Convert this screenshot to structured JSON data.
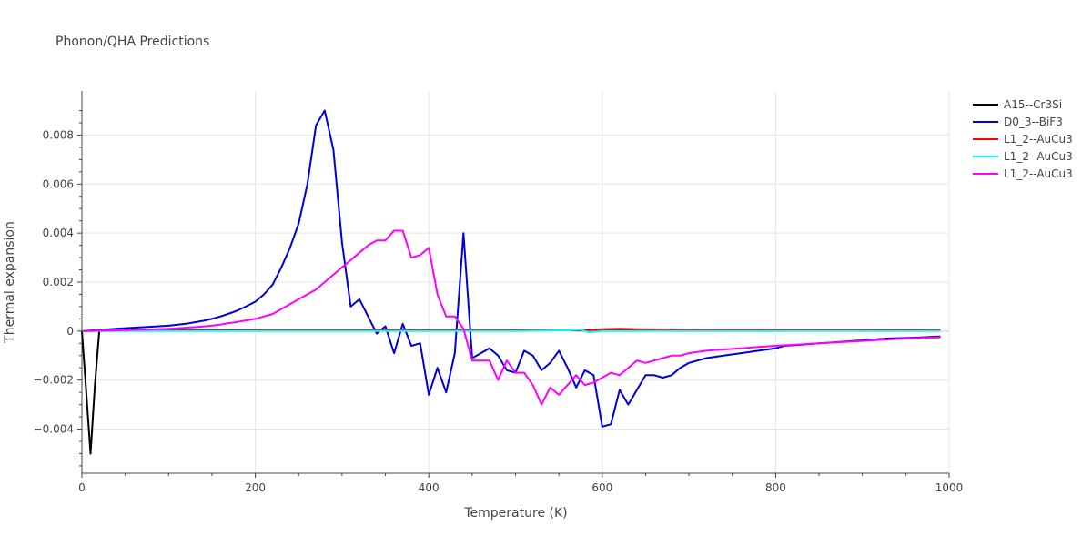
{
  "chart_data": {
    "type": "line",
    "title": "Phonon/QHA Predictions",
    "xlabel": "Temperature (K)",
    "ylabel": "Thermal expansion",
    "xlim": [
      0,
      1000
    ],
    "ylim": [
      -0.0058,
      0.0098
    ],
    "xticks": [
      0,
      200,
      400,
      600,
      800,
      1000
    ],
    "xtick_labels": [
      "0",
      "200",
      "400",
      "600",
      "800",
      "1000"
    ],
    "yticks": [
      -0.004,
      -0.002,
      0,
      0.002,
      0.004,
      0.006,
      0.008
    ],
    "ytick_labels": [
      "−0.004",
      "−0.002",
      "0",
      "0.002",
      "0.004",
      "0.006",
      "0.008"
    ],
    "grid": true,
    "legend_position": "top-right",
    "series": [
      {
        "name": "A15--Cr3Si",
        "color": "#000000",
        "x": [
          0,
          5,
          10,
          15,
          20,
          40,
          100,
          200,
          300,
          400,
          500,
          600,
          700,
          800,
          900,
          990
        ],
        "y": [
          0,
          -0.0025,
          -0.005,
          -0.0022,
          0,
          5e-05,
          5e-05,
          5e-05,
          5e-05,
          5e-05,
          5e-05,
          5e-05,
          5e-05,
          5e-05,
          5e-05,
          5e-05
        ]
      },
      {
        "name": "D0_3--BiF3",
        "color": "#0000dd",
        "x": [
          0,
          20,
          50,
          80,
          100,
          120,
          140,
          150,
          160,
          170,
          180,
          190,
          200,
          210,
          220,
          230,
          240,
          250,
          260,
          270,
          280,
          290,
          300,
          310,
          320,
          330,
          340,
          350,
          360,
          370,
          380,
          390,
          400,
          410,
          420,
          430,
          440,
          450,
          460,
          470,
          480,
          490,
          500,
          510,
          520,
          530,
          540,
          550,
          560,
          570,
          580,
          590,
          600,
          610,
          620,
          630,
          640,
          650,
          660,
          670,
          680,
          690,
          700,
          710,
          720,
          740,
          760,
          780,
          800,
          810,
          830,
          850,
          870,
          890,
          910,
          930,
          950,
          970,
          990
        ],
        "y": [
          0,
          5e-05,
          0.00012,
          0.00018,
          0.00022,
          0.0003,
          0.00042,
          0.0005,
          0.0006,
          0.00072,
          0.00085,
          0.00102,
          0.0012,
          0.0015,
          0.0019,
          0.0026,
          0.0034,
          0.0044,
          0.006,
          0.0084,
          0.009,
          0.0074,
          0.0036,
          0.001,
          0.0013,
          0.0006,
          -0.0001,
          0.0002,
          -0.0009,
          0.0003,
          -0.0006,
          -0.0005,
          -0.0026,
          -0.0015,
          -0.0025,
          -0.0009,
          0.004,
          -0.0011,
          -0.0009,
          -0.0007,
          -0.001,
          -0.0016,
          -0.0017,
          -0.0008,
          -0.001,
          -0.0016,
          -0.0013,
          -0.0008,
          -0.0015,
          -0.0023,
          -0.0016,
          -0.0018,
          -0.0039,
          -0.0038,
          -0.0024,
          -0.003,
          -0.0024,
          -0.0018,
          -0.0018,
          -0.0019,
          -0.0018,
          -0.0015,
          -0.0013,
          -0.0012,
          -0.0011,
          -0.001,
          -0.0009,
          -0.0008,
          -0.0007,
          -0.0006,
          -0.00055,
          -0.0005,
          -0.00045,
          -0.0004,
          -0.00035,
          -0.0003,
          -0.00028,
          -0.00025,
          -0.00022
        ]
      },
      {
        "name": "L1_2--AuCu3",
        "color": "#ff0000",
        "x": [
          0,
          100,
          200,
          300,
          400,
          500,
          560,
          580,
          600,
          620,
          640,
          700,
          800,
          900,
          990
        ],
        "y": [
          0,
          2e-05,
          3e-05,
          3e-05,
          3e-05,
          3e-05,
          3e-05,
          2e-05,
          8e-05,
          0.0001,
          8e-05,
          5e-05,
          4e-05,
          4e-05,
          3e-05
        ]
      },
      {
        "name": "L1_2--AuCu3",
        "color": "#00ffff",
        "x": [
          0,
          100,
          200,
          300,
          400,
          500,
          560,
          575,
          585,
          600,
          700,
          800,
          900,
          990
        ],
        "y": [
          0,
          0,
          0,
          0,
          0,
          0,
          3e-05,
          6e-05,
          -5e-05,
          0,
          0,
          0,
          0,
          0
        ]
      },
      {
        "name": "L1_2--AuCu3",
        "color": "#ff00ff",
        "x": [
          0,
          20,
          50,
          80,
          100,
          120,
          140,
          150,
          160,
          170,
          180,
          190,
          200,
          210,
          220,
          230,
          240,
          250,
          260,
          270,
          280,
          290,
          300,
          310,
          320,
          330,
          340,
          350,
          360,
          370,
          380,
          390,
          400,
          410,
          420,
          430,
          440,
          450,
          460,
          470,
          480,
          490,
          500,
          510,
          520,
          530,
          540,
          550,
          560,
          570,
          580,
          590,
          600,
          610,
          620,
          630,
          640,
          650,
          660,
          670,
          680,
          690,
          700,
          720,
          740,
          760,
          780,
          800,
          850,
          900,
          950,
          990
        ],
        "y": [
          0,
          2e-05,
          4e-05,
          7e-05,
          0.0001,
          0.00014,
          0.00019,
          0.00022,
          0.00027,
          0.00033,
          0.00038,
          0.00044,
          0.0005,
          0.0006,
          0.0007,
          0.0009,
          0.0011,
          0.0013,
          0.0015,
          0.0017,
          0.002,
          0.0023,
          0.0026,
          0.0029,
          0.0032,
          0.0035,
          0.0037,
          0.0037,
          0.0041,
          0.0041,
          0.003,
          0.0031,
          0.0034,
          0.0015,
          0.0006,
          0.0006,
          0.0001,
          -0.0012,
          -0.0012,
          -0.0012,
          -0.002,
          -0.0012,
          -0.0017,
          -0.0017,
          -0.0022,
          -0.003,
          -0.0023,
          -0.0026,
          -0.0022,
          -0.0018,
          -0.0022,
          -0.0021,
          -0.0019,
          -0.0017,
          -0.0018,
          -0.0015,
          -0.0012,
          -0.0013,
          -0.0012,
          -0.0011,
          -0.001,
          -0.001,
          -0.0009,
          -0.0008,
          -0.00075,
          -0.0007,
          -0.00065,
          -0.0006,
          -0.0005,
          -0.0004,
          -0.0003,
          -0.00025
        ]
      }
    ]
  }
}
